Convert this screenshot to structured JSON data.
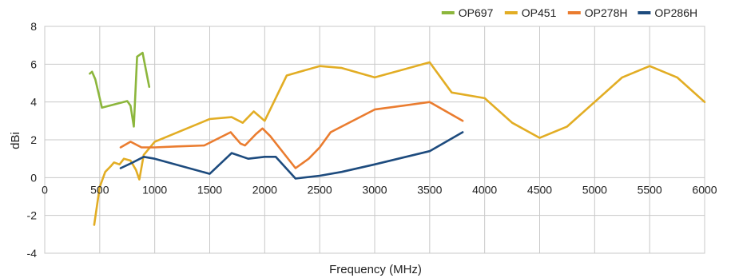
{
  "chart_data": {
    "type": "line",
    "title": "",
    "xlabel": "Frequency (MHz)",
    "ylabel": "dBi",
    "xlim": [
      0,
      6000
    ],
    "ylim": [
      -4,
      8
    ],
    "x_ticks": [
      0,
      500,
      1000,
      1500,
      2000,
      2500,
      3000,
      3500,
      4000,
      4500,
      5000,
      5500,
      6000
    ],
    "x_tick_labels": [
      "0",
      "500",
      "1000",
      "1500",
      "2000",
      "2500",
      "3000",
      "3500",
      "4000",
      "4500",
      "5000",
      "5500",
      "6000"
    ],
    "y_ticks": [
      -4,
      -2,
      0,
      2,
      4,
      6,
      8
    ],
    "y_tick_labels": [
      "-4",
      "-2",
      "0",
      "2",
      "4",
      "6",
      "8"
    ],
    "grid": true,
    "legend_position": "top-right",
    "series": [
      {
        "name": "OP697",
        "color": "#8cb63c",
        "points": [
          [
            410,
            5.5
          ],
          [
            430,
            5.6
          ],
          [
            460,
            5.2
          ],
          [
            520,
            3.7
          ],
          [
            750,
            4.05
          ],
          [
            780,
            3.8
          ],
          [
            810,
            2.7
          ],
          [
            840,
            6.4
          ],
          [
            890,
            6.6
          ],
          [
            950,
            4.8
          ]
        ]
      },
      {
        "name": "OP451",
        "color": "#e2ad24",
        "points": [
          [
            450,
            -2.5
          ],
          [
            500,
            -0.5
          ],
          [
            550,
            0.3
          ],
          [
            600,
            0.6
          ],
          [
            630,
            0.8
          ],
          [
            680,
            0.7
          ],
          [
            720,
            1.0
          ],
          [
            780,
            0.9
          ],
          [
            830,
            0.4
          ],
          [
            860,
            -0.1
          ],
          [
            900,
            1.2
          ],
          [
            1000,
            1.9
          ],
          [
            1500,
            3.1
          ],
          [
            1700,
            3.2
          ],
          [
            1800,
            2.9
          ],
          [
            1900,
            3.5
          ],
          [
            2000,
            3.0
          ],
          [
            2200,
            5.4
          ],
          [
            2500,
            5.9
          ],
          [
            2700,
            5.8
          ],
          [
            3000,
            5.3
          ],
          [
            3500,
            6.1
          ],
          [
            3700,
            4.5
          ],
          [
            4000,
            4.2
          ],
          [
            4250,
            2.9
          ],
          [
            4500,
            2.1
          ],
          [
            4750,
            2.7
          ],
          [
            5000,
            4.0
          ],
          [
            5250,
            5.3
          ],
          [
            5500,
            5.9
          ],
          [
            5750,
            5.3
          ],
          [
            6000,
            4.0
          ]
        ]
      },
      {
        "name": "OP278H",
        "color": "#ea7c2f",
        "points": [
          [
            690,
            1.6
          ],
          [
            780,
            1.9
          ],
          [
            880,
            1.6
          ],
          [
            1000,
            1.6
          ],
          [
            1200,
            1.65
          ],
          [
            1450,
            1.7
          ],
          [
            1690,
            2.4
          ],
          [
            1780,
            1.8
          ],
          [
            1820,
            1.7
          ],
          [
            1920,
            2.3
          ],
          [
            1980,
            2.6
          ],
          [
            2050,
            2.2
          ],
          [
            2280,
            0.5
          ],
          [
            2400,
            1.0
          ],
          [
            2500,
            1.6
          ],
          [
            2600,
            2.4
          ],
          [
            3000,
            3.6
          ],
          [
            3500,
            4.0
          ],
          [
            3800,
            3.0
          ]
        ]
      },
      {
        "name": "OP286H",
        "color": "#1d4b7e",
        "points": [
          [
            690,
            0.5
          ],
          [
            800,
            0.8
          ],
          [
            900,
            1.1
          ],
          [
            1000,
            1.0
          ],
          [
            1500,
            0.2
          ],
          [
            1700,
            1.3
          ],
          [
            1850,
            1.0
          ],
          [
            2000,
            1.1
          ],
          [
            2100,
            1.1
          ],
          [
            2280,
            -0.05
          ],
          [
            2500,
            0.1
          ],
          [
            2700,
            0.3
          ],
          [
            3000,
            0.7
          ],
          [
            3500,
            1.4
          ],
          [
            3800,
            2.4
          ]
        ]
      }
    ]
  }
}
